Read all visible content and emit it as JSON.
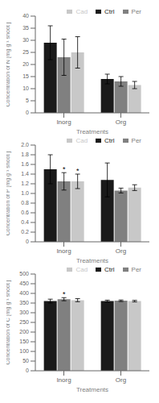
{
  "chart_data": [
    {
      "type": "bar",
      "categories": [
        "Inorg",
        "Org"
      ],
      "xlabel": "Treatments",
      "ylabel": "Concentration of N [mg g⁻¹ shoot ]",
      "ylim": [
        0,
        40
      ],
      "yticks": [
        0,
        5,
        10,
        15,
        20,
        25,
        30,
        35,
        40
      ],
      "series": [
        {
          "name": "Ctrl",
          "color": "#1a1a1a",
          "values": [
            29.0,
            14.0
          ],
          "errors": [
            7.0,
            2.0
          ]
        },
        {
          "name": "Per",
          "color": "#808080",
          "values": [
            23.0,
            13.0
          ],
          "errors": [
            7.5,
            2.0
          ]
        },
        {
          "name": "Cad",
          "color": "#c8c8c8",
          "values": [
            25.0,
            11.5
          ],
          "errors": [
            6.5,
            1.5
          ]
        }
      ],
      "annotations": [],
      "legend": "upper right",
      "grid": false
    },
    {
      "type": "bar",
      "categories": [
        "Inorg",
        "Org"
      ],
      "xlabel": "Treatments",
      "ylabel": "Concentration of P [mg g⁻¹ shoot ]",
      "ylim": [
        0,
        2.0
      ],
      "yticks": [
        0,
        0.2,
        0.4,
        0.6,
        0.8,
        {
          "value": 1.0,
          "label": "1.0"
        },
        1.2,
        1.4,
        1.6,
        1.8,
        {
          "value": 2.0,
          "label": "2.0"
        }
      ],
      "series": [
        {
          "name": "Ctrl",
          "color": "#1a1a1a",
          "values": [
            1.5,
            1.28
          ],
          "errors": [
            0.3,
            0.35
          ]
        },
        {
          "name": "Per",
          "color": "#808080",
          "values": [
            1.25,
            1.06
          ],
          "errors": [
            0.18,
            0.05
          ]
        },
        {
          "name": "Cad",
          "color": "#c8c8c8",
          "values": [
            1.25,
            1.12
          ],
          "errors": [
            0.15,
            0.06
          ]
        }
      ],
      "annotations": [
        {
          "text": "*",
          "series": "Per",
          "category": "Inorg"
        },
        {
          "text": "*",
          "series": "Cad",
          "category": "Inorg"
        }
      ],
      "legend": "upper right",
      "grid": false
    },
    {
      "type": "bar",
      "categories": [
        "Inorg",
        "Org"
      ],
      "xlabel": "Treatments",
      "ylabel": "Concentration of C [mg g⁻¹ shoot ]",
      "ylim": [
        0,
        500
      ],
      "yticks": [
        0,
        50,
        100,
        150,
        200,
        250,
        300,
        350,
        400,
        450,
        500
      ],
      "series": [
        {
          "name": "Ctrl",
          "color": "#1a1a1a",
          "values": [
            360,
            360
          ],
          "errors": [
            10,
            5
          ]
        },
        {
          "name": "Per",
          "color": "#808080",
          "values": [
            370,
            362
          ],
          "errors": [
            8,
            4
          ]
        },
        {
          "name": "Cad",
          "color": "#c8c8c8",
          "values": [
            365,
            360
          ],
          "errors": [
            8,
            4
          ]
        }
      ],
      "annotations": [
        {
          "text": "*",
          "series": "Per",
          "category": "Inorg"
        }
      ],
      "legend": "upper right",
      "grid": false
    }
  ]
}
